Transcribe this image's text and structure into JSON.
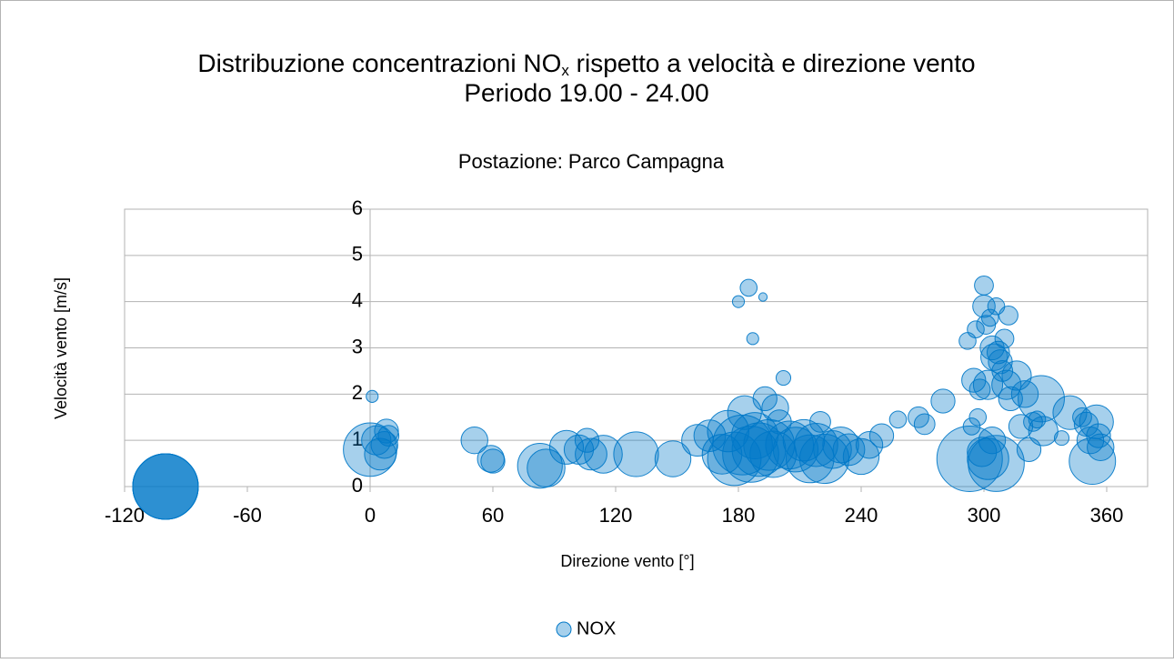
{
  "chart_data": {
    "type": "bubble",
    "title": {
      "main": "Distribuzione concentrazioni NO",
      "subscript": "x",
      "rest": " rispetto a velocità e direzione vento"
    },
    "title_line2": "Periodo 19.00 - 24.00",
    "subtitle": "Postazione: Parco Campagna",
    "x_label": "Direzione vento [°]",
    "y_label": "Velocità vento [m/s]",
    "xlim": [
      -120,
      380
    ],
    "xticks": [
      -120,
      -60,
      0,
      60,
      120,
      180,
      240,
      300,
      360
    ],
    "ylim": [
      0,
      6
    ],
    "yticks": [
      0,
      1,
      2,
      3,
      4,
      5,
      6
    ],
    "grid": true,
    "legend": "bottom",
    "series": [
      {
        "name": "NOX",
        "color": "#0078c8",
        "x": [
          -100,
          -100,
          -100,
          -100,
          1,
          0,
          3,
          5,
          8,
          9,
          7,
          51,
          59,
          60,
          83,
          86,
          96,
          102,
          106,
          108,
          114,
          130,
          148,
          160,
          166,
          172,
          175,
          178,
          180,
          182,
          183,
          185,
          186,
          187,
          188,
          190,
          192,
          193,
          195,
          197,
          198,
          200,
          202,
          205,
          208,
          212,
          215,
          218,
          220,
          222,
          226,
          230,
          234,
          240,
          244,
          250,
          258,
          268,
          271,
          280,
          292,
          293,
          294,
          295,
          296,
          297,
          298,
          299,
          300,
          300,
          301,
          302,
          302,
          303,
          304,
          304,
          305,
          306,
          306,
          307,
          308,
          309,
          310,
          311,
          312,
          313,
          316,
          318,
          320,
          322,
          324,
          326,
          328,
          329,
          338,
          342,
          348,
          350,
          352,
          353,
          355,
          356,
          357
        ],
        "y": [
          0,
          0,
          0,
          0,
          1.95,
          0.8,
          1.0,
          0.7,
          1.2,
          1.1,
          0.9,
          1.0,
          0.6,
          0.55,
          0.45,
          0.4,
          0.85,
          0.8,
          1.0,
          0.7,
          0.7,
          0.7,
          0.6,
          1.0,
          1.1,
          0.7,
          1.2,
          0.6,
          4.0,
          0.9,
          1.6,
          4.3,
          0.7,
          3.2,
          1.1,
          0.8,
          4.1,
          1.9,
          0.9,
          0.7,
          1.7,
          1.4,
          2.35,
          0.9,
          0.8,
          1.0,
          0.6,
          0.9,
          1.4,
          0.6,
          0.8,
          0.9,
          0.8,
          0.65,
          0.9,
          1.1,
          1.45,
          1.5,
          1.35,
          1.85,
          3.15,
          0.6,
          1.3,
          2.3,
          3.4,
          1.5,
          2.1,
          0.75,
          4.35,
          3.9,
          3.5,
          2.2,
          0.6,
          3.65,
          3.0,
          1.0,
          2.8,
          3.9,
          0.5,
          2.9,
          2.7,
          2.5,
          3.2,
          2.2,
          3.7,
          1.9,
          2.4,
          1.3,
          2.0,
          0.8,
          1.4,
          1.45,
          1.9,
          1.2,
          1.05,
          1.6,
          1.5,
          1.35,
          1.0,
          0.55,
          1.4,
          1.1,
          0.85
        ],
        "sizes": [
          300,
          300,
          300,
          300,
          10,
          200,
          60,
          70,
          40,
          30,
          50,
          50,
          50,
          40,
          140,
          100,
          80,
          60,
          40,
          70,
          100,
          140,
          90,
          70,
          70,
          110,
          120,
          200,
          10,
          250,
          80,
          20,
          220,
          10,
          150,
          200,
          5,
          40,
          180,
          150,
          50,
          40,
          15,
          160,
          140,
          120,
          160,
          130,
          30,
          170,
          100,
          90,
          70,
          90,
          50,
          40,
          20,
          30,
          30,
          40,
          20,
          300,
          20,
          40,
          20,
          20,
          30,
          60,
          25,
          35,
          25,
          60,
          120,
          20,
          40,
          50,
          50,
          20,
          220,
          35,
          40,
          30,
          25,
          60,
          25,
          40,
          60,
          40,
          50,
          40,
          25,
          20,
          150,
          60,
          15,
          80,
          25,
          40,
          50,
          150,
          80,
          40,
          50
        ]
      }
    ]
  }
}
